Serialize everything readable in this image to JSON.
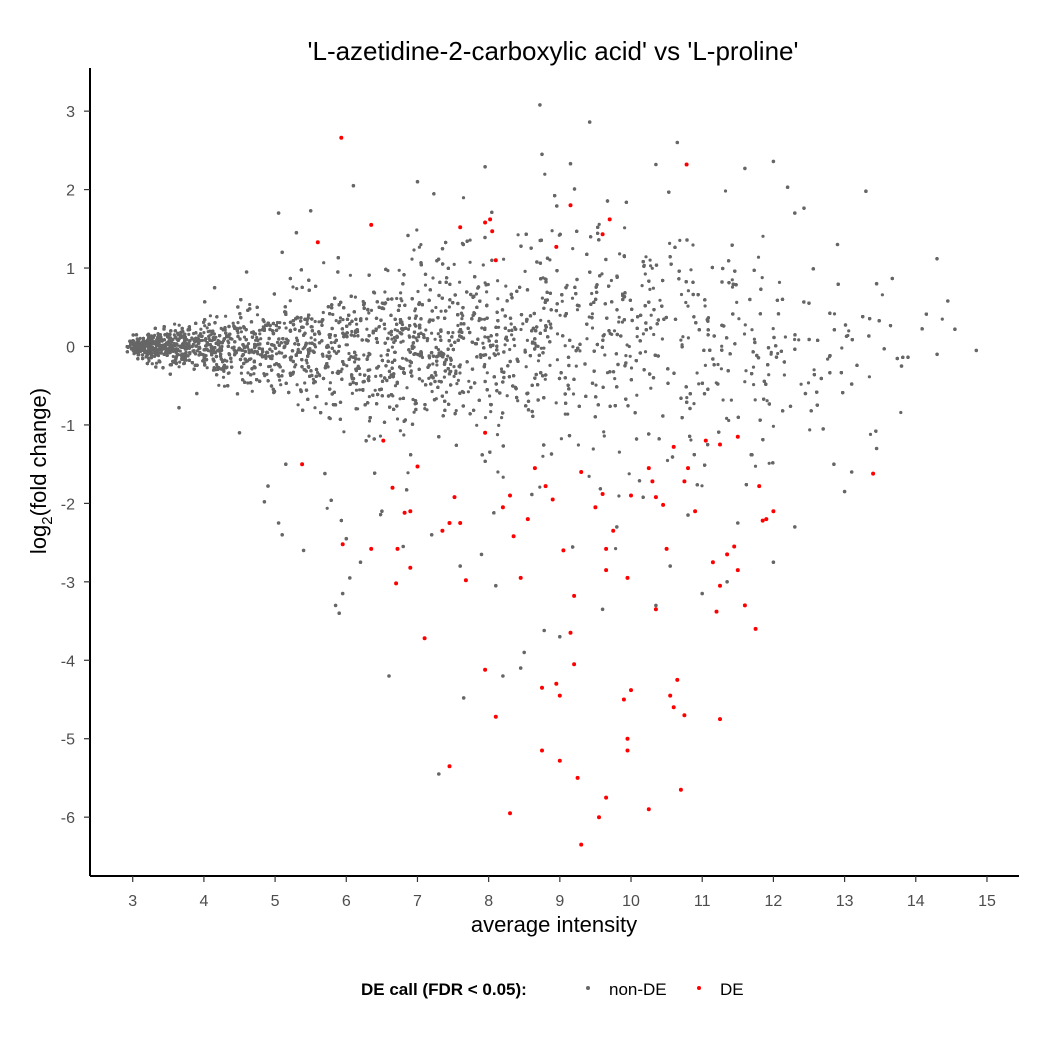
{
  "chart_data": {
    "type": "scatter",
    "title": "'L-azetidine-2-carboxylic acid' vs 'L-proline'",
    "xlabel": "average intensity",
    "ylabel_main": "log",
    "ylabel_sub": "2",
    "ylabel_rest": "(fold change)",
    "xlim": [
      2.4,
      15.45
    ],
    "ylim": [
      -6.75,
      3.55
    ],
    "x_ticks": [
      3,
      4,
      5,
      6,
      7,
      8,
      9,
      10,
      11,
      12,
      13,
      14,
      15
    ],
    "x_tick_labels": [
      "3",
      "4",
      "5",
      "6",
      "7",
      "8",
      "9",
      "10",
      "11",
      "12",
      "13",
      "14",
      "15"
    ],
    "y_ticks": [
      3,
      2,
      1,
      0,
      -1,
      -2,
      -3,
      -4,
      -5,
      -6
    ],
    "y_tick_labels": [
      "3",
      "2",
      "1",
      "0",
      "-1",
      "-2",
      "-3",
      "-4",
      "-5",
      "-6"
    ],
    "grid": false,
    "legend": {
      "position": "bottom",
      "title": "DE call (FDR < 0.05):",
      "entries": [
        {
          "label": "non-DE",
          "color": "#666666"
        },
        {
          "label": "DE",
          "color": "#ff0000"
        }
      ]
    },
    "series": [
      {
        "name": "non-DE",
        "color": "#666666",
        "note_dense_cloud": "approx. 20000 additional points forming a dense cloud centred on 0",
        "points": [
          [
            8.72,
            3.08
          ],
          [
            9.42,
            2.86
          ],
          [
            10.65,
            2.6
          ],
          [
            8.75,
            2.45
          ],
          [
            9.15,
            2.33
          ],
          [
            7.95,
            2.29
          ],
          [
            12.0,
            2.36
          ],
          [
            11.6,
            2.27
          ],
          [
            10.35,
            2.32
          ],
          [
            12.2,
            2.03
          ],
          [
            6.1,
            2.05
          ],
          [
            7.0,
            2.1
          ],
          [
            5.05,
            1.7
          ],
          [
            5.5,
            1.73
          ],
          [
            12.3,
            1.7
          ],
          [
            13.3,
            1.98
          ],
          [
            12.9,
            1.3
          ],
          [
            13.45,
            0.8
          ],
          [
            14.45,
            0.58
          ],
          [
            14.85,
            -0.05
          ],
          [
            14.55,
            0.22
          ],
          [
            14.3,
            -0.1
          ],
          [
            13.8,
            -0.25
          ],
          [
            13.1,
            -0.48
          ],
          [
            12.45,
            -0.6
          ],
          [
            4.15,
            0.75
          ],
          [
            3.65,
            -0.78
          ],
          [
            5.1,
            1.2
          ],
          [
            5.3,
            1.45
          ],
          [
            4.6,
            0.95
          ],
          [
            3.9,
            -0.6
          ],
          [
            5.15,
            -1.5
          ],
          [
            5.7,
            -1.62
          ],
          [
            5.05,
            -2.25
          ],
          [
            5.1,
            -2.4
          ],
          [
            4.85,
            -1.98
          ],
          [
            4.5,
            -1.1
          ],
          [
            4.9,
            -1.78
          ],
          [
            5.85,
            -3.3
          ],
          [
            5.9,
            -3.4
          ],
          [
            6.05,
            -2.95
          ],
          [
            5.95,
            -3.15
          ],
          [
            6.6,
            -4.2
          ],
          [
            7.3,
            -5.45
          ],
          [
            7.65,
            -4.48
          ],
          [
            8.2,
            -4.2
          ],
          [
            8.45,
            -4.1
          ],
          [
            8.5,
            -3.9
          ],
          [
            8.78,
            -3.62
          ],
          [
            9.0,
            -3.7
          ],
          [
            6.8,
            -2.55
          ],
          [
            7.6,
            -2.8
          ],
          [
            8.1,
            -3.05
          ],
          [
            9.6,
            -3.35
          ],
          [
            10.35,
            -3.3
          ],
          [
            11.0,
            -3.15
          ],
          [
            12.3,
            -2.3
          ],
          [
            13.0,
            -1.85
          ],
          [
            13.1,
            -1.6
          ],
          [
            12.85,
            -1.5
          ],
          [
            13.45,
            -1.3
          ],
          [
            12.7,
            -1.05
          ],
          [
            11.5,
            -2.25
          ],
          [
            12.0,
            -2.75
          ],
          [
            11.35,
            -3.0
          ],
          [
            10.55,
            -2.8
          ],
          [
            6.2,
            -2.75
          ],
          [
            6.0,
            -2.45
          ],
          [
            5.4,
            -2.6
          ],
          [
            6.5,
            -2.1
          ],
          [
            7.2,
            -2.4
          ],
          [
            7.9,
            -2.65
          ],
          [
            9.8,
            -2.3
          ],
          [
            10.8,
            -2.15
          ]
        ]
      },
      {
        "name": "DE",
        "color": "#ff0000",
        "points": [
          [
            5.93,
            2.66
          ],
          [
            10.78,
            2.32
          ],
          [
            5.6,
            1.33
          ],
          [
            6.35,
            1.55
          ],
          [
            7.6,
            1.52
          ],
          [
            8.02,
            1.62
          ],
          [
            7.95,
            1.58
          ],
          [
            8.05,
            1.47
          ],
          [
            8.1,
            1.1
          ],
          [
            8.95,
            1.27
          ],
          [
            9.15,
            1.8
          ],
          [
            9.6,
            1.43
          ],
          [
            9.7,
            1.62
          ],
          [
            6.52,
            -1.2
          ],
          [
            7.0,
            -1.53
          ],
          [
            5.38,
            -1.5
          ],
          [
            5.95,
            -2.52
          ],
          [
            6.35,
            -2.58
          ],
          [
            6.65,
            -1.8
          ],
          [
            6.72,
            -2.58
          ],
          [
            6.82,
            -2.12
          ],
          [
            6.9,
            -2.1
          ],
          [
            6.9,
            -2.82
          ],
          [
            6.7,
            -3.02
          ],
          [
            7.1,
            -3.72
          ],
          [
            7.35,
            -2.35
          ],
          [
            7.45,
            -2.25
          ],
          [
            7.52,
            -1.92
          ],
          [
            7.6,
            -2.25
          ],
          [
            7.68,
            -2.98
          ],
          [
            7.95,
            -1.1
          ],
          [
            8.2,
            -2.05
          ],
          [
            8.3,
            -1.9
          ],
          [
            8.35,
            -2.42
          ],
          [
            8.45,
            -2.95
          ],
          [
            8.55,
            -2.2
          ],
          [
            8.65,
            -1.55
          ],
          [
            8.8,
            -1.78
          ],
          [
            8.9,
            -1.95
          ],
          [
            9.05,
            -2.6
          ],
          [
            9.2,
            -3.18
          ],
          [
            9.3,
            -1.6
          ],
          [
            9.5,
            -2.05
          ],
          [
            9.6,
            -1.88
          ],
          [
            9.65,
            -2.58
          ],
          [
            9.65,
            -2.85
          ],
          [
            9.75,
            -2.35
          ],
          [
            9.95,
            -2.95
          ],
          [
            10.0,
            -1.9
          ],
          [
            10.25,
            -1.55
          ],
          [
            10.3,
            -1.72
          ],
          [
            10.35,
            -1.92
          ],
          [
            10.45,
            -2.02
          ],
          [
            10.5,
            -2.58
          ],
          [
            10.6,
            -1.28
          ],
          [
            10.75,
            -1.72
          ],
          [
            10.8,
            -1.55
          ],
          [
            10.9,
            -2.1
          ],
          [
            11.05,
            -1.2
          ],
          [
            11.15,
            -2.75
          ],
          [
            11.25,
            -3.05
          ],
          [
            11.35,
            -2.65
          ],
          [
            11.45,
            -2.55
          ],
          [
            11.5,
            -2.85
          ],
          [
            11.6,
            -3.3
          ],
          [
            11.75,
            -3.6
          ],
          [
            11.8,
            -1.78
          ],
          [
            11.85,
            -2.22
          ],
          [
            11.9,
            -2.2
          ],
          [
            12.0,
            -2.1
          ],
          [
            13.4,
            -1.62
          ],
          [
            11.25,
            -1.25
          ],
          [
            11.5,
            -1.15
          ],
          [
            7.45,
            -5.35
          ],
          [
            7.95,
            -4.12
          ],
          [
            8.1,
            -4.72
          ],
          [
            8.3,
            -5.95
          ],
          [
            8.75,
            -5.15
          ],
          [
            8.95,
            -4.3
          ],
          [
            9.0,
            -4.45
          ],
          [
            9.0,
            -5.28
          ],
          [
            9.15,
            -3.65
          ],
          [
            9.2,
            -4.05
          ],
          [
            9.25,
            -5.5
          ],
          [
            9.3,
            -6.35
          ],
          [
            9.55,
            -6.0
          ],
          [
            9.65,
            -5.75
          ],
          [
            9.9,
            -4.5
          ],
          [
            9.95,
            -5.0
          ],
          [
            9.95,
            -5.15
          ],
          [
            10.0,
            -4.38
          ],
          [
            10.25,
            -5.9
          ],
          [
            10.35,
            -3.35
          ],
          [
            10.55,
            -4.45
          ],
          [
            10.6,
            -4.6
          ],
          [
            10.65,
            -4.25
          ],
          [
            10.7,
            -5.65
          ],
          [
            10.75,
            -4.7
          ],
          [
            11.2,
            -3.38
          ],
          [
            11.25,
            -4.75
          ],
          [
            8.75,
            -4.35
          ]
        ]
      }
    ]
  }
}
